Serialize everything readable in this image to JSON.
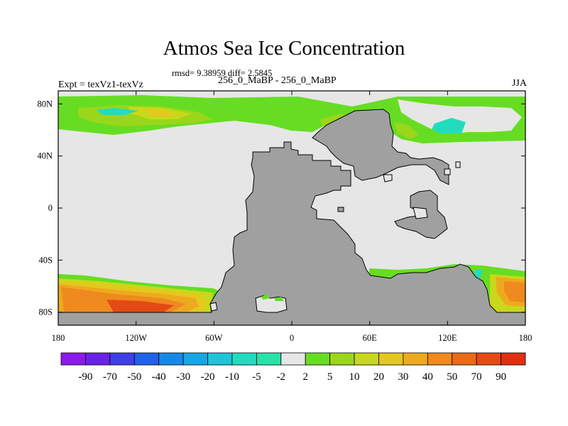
{
  "title": "Atmos Sea Ice Concentration",
  "stats_line": "rmsd= 9.38959 diff= 2.5845",
  "expt_label": "Expt = texVz1-texVz",
  "run_label": "256_0_MaBP - 256_0_MaBP",
  "season_label": "JJA",
  "map": {
    "lon_range": [
      -180,
      180
    ],
    "lat_range": [
      -90,
      90
    ],
    "x_ticks": [
      {
        "lon": -180,
        "label": "180"
      },
      {
        "lon": -120,
        "label": "120W"
      },
      {
        "lon": -60,
        "label": "60W"
      },
      {
        "lon": 0,
        "label": "0"
      },
      {
        "lon": 60,
        "label": "60E"
      },
      {
        "lon": 120,
        "label": "120E"
      },
      {
        "lon": 180,
        "label": "180"
      }
    ],
    "y_ticks": [
      {
        "lat": 80,
        "label": "80N"
      },
      {
        "lat": 40,
        "label": "40N"
      },
      {
        "lat": 0,
        "label": "0"
      },
      {
        "lat": -40,
        "label": "40S"
      },
      {
        "lat": -80,
        "label": "80S"
      }
    ],
    "land_color": "#a0a0a0",
    "neutral_color": "#e6e6e6"
  },
  "colorbar": {
    "labels": [
      "-90",
      "-70",
      "-50",
      "-40",
      "-30",
      "-20",
      "-10",
      "-5",
      "-2",
      "2",
      "5",
      "10",
      "20",
      "30",
      "40",
      "50",
      "70",
      "90"
    ],
    "colors": [
      "#8c1aec",
      "#6a22e6",
      "#3f3fe8",
      "#1f62e8",
      "#1888e8",
      "#17a6e4",
      "#1ec4d8",
      "#22dcc0",
      "#27e3a8",
      "#e6e6e6",
      "#66dd22",
      "#9ad61a",
      "#c8d81a",
      "#e4c81e",
      "#eeaa1e",
      "#ee8a1e",
      "#ea6a18",
      "#e64a14",
      "#e03010"
    ]
  }
}
